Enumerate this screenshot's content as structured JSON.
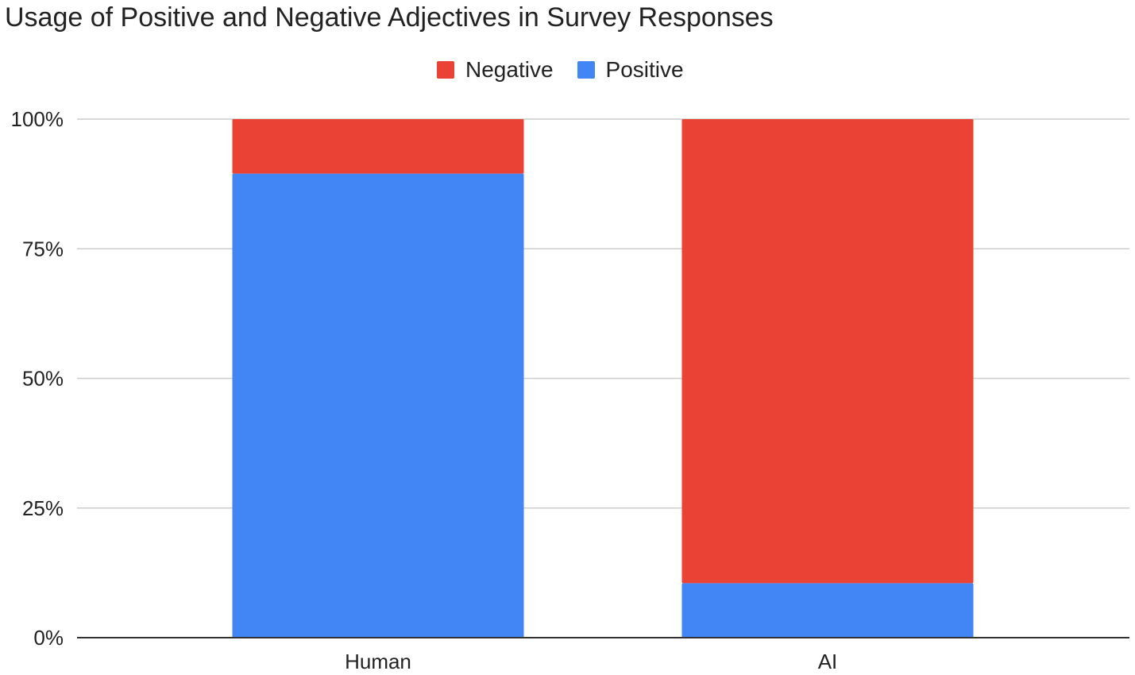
{
  "title": "Usage of Positive and Negative Adjectives in Survey Responses",
  "colors": {
    "negative": "#EA4335",
    "positive": "#4285F4",
    "grid": "#cccccc",
    "axis": "#333333"
  },
  "legend": [
    {
      "name": "Negative",
      "color": "#EA4335"
    },
    {
      "name": "Positive",
      "color": "#4285F4"
    }
  ],
  "chart_data": {
    "type": "bar",
    "stacked": "percent",
    "title": "Usage of Positive and Negative Adjectives in Survey Responses",
    "categories": [
      "Human",
      "AI"
    ],
    "series": [
      {
        "name": "Positive",
        "values": [
          89.5,
          10.5
        ],
        "color": "#4285F4"
      },
      {
        "name": "Negative",
        "values": [
          10.5,
          89.5
        ],
        "color": "#EA4335"
      }
    ],
    "yticks": [
      "0%",
      "25%",
      "50%",
      "75%",
      "100%"
    ],
    "ylim": [
      0,
      100
    ],
    "grid": true,
    "legend_position": "top"
  }
}
